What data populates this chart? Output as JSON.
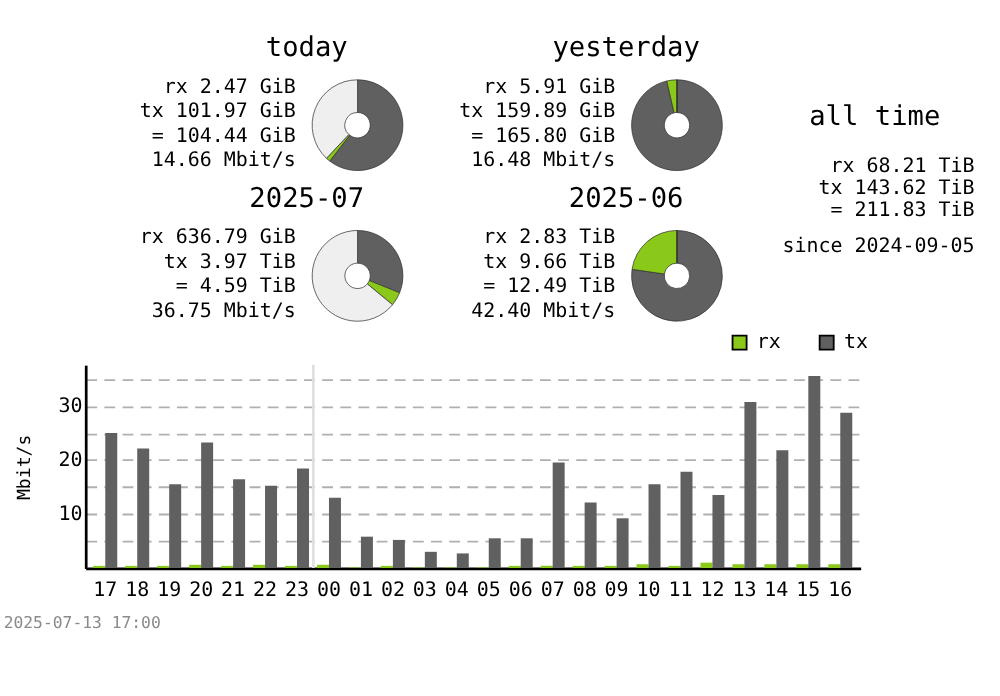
{
  "chart_data": [
    {
      "type": "donut",
      "title": "today",
      "categories": [
        null,
        null,
        null
      ],
      "values": [
        60.5,
        1.5,
        38
      ],
      "colors": [
        "#606060",
        "#8ac819",
        "#efefef"
      ],
      "annotations": [
        "rx 2.47 GiB",
        "tx 101.97 GiB",
        "= 104.44 GiB",
        "14.66 Mbit/s"
      ]
    },
    {
      "type": "donut",
      "title": "yesterday",
      "categories": [
        null,
        null,
        null
      ],
      "values": [
        96.4,
        3.6,
        0
      ],
      "colors": [
        "#606060",
        "#8ac819",
        "#efefef"
      ],
      "annotations": [
        "rx 5.91 GiB",
        "tx 159.89 GiB",
        "= 165.80 GiB",
        "16.48 Mbit/s"
      ]
    },
    {
      "type": "other",
      "title": "all time",
      "annotations": [
        "rx 68.21 TiB",
        "tx 143.62 TiB",
        "= 211.83 TiB",
        "since 2024-09-05"
      ]
    },
    {
      "type": "donut",
      "title": "2025-07",
      "categories": [
        null,
        null,
        null
      ],
      "values": [
        31.1,
        4.9,
        64
      ],
      "colors": [
        "#606060",
        "#8ac819",
        "#efefef"
      ],
      "annotations": [
        "rx 636.79 GiB",
        "tx 3.97 TiB",
        "= 4.59 TiB",
        "36.75 Mbit/s"
      ]
    },
    {
      "type": "donut",
      "title": "2025-06",
      "categories": [
        null,
        null,
        null
      ],
      "values": [
        77.3,
        22.7,
        0
      ],
      "colors": [
        "#606060",
        "#8ac819",
        "#efefef"
      ],
      "annotations": [
        "rx 2.83 TiB",
        "tx 9.66 TiB",
        "= 12.49 TiB",
        "42.40 Mbit/s"
      ]
    },
    {
      "type": "bar",
      "ylabel": "Mbit/s",
      "categories": [
        "17",
        "18",
        "19",
        "20",
        "21",
        "22",
        "23",
        "00",
        "01",
        "02",
        "03",
        "04",
        "05",
        "06",
        "07",
        "08",
        "09",
        "10",
        "11",
        "12",
        "13",
        "14",
        "15",
        "16"
      ],
      "series": [
        {
          "name": "rx",
          "color": "#8ac819",
          "values": [
            0.4,
            0.4,
            0.4,
            0.6,
            0.4,
            0.6,
            0.4,
            0.6,
            0.1,
            0.4,
            0.1,
            0.1,
            0.1,
            0.4,
            0.4,
            0.4,
            0.4,
            0.7,
            0.4,
            1.0,
            0.7,
            0.7,
            0.7,
            0.7
          ]
        },
        {
          "name": "tx",
          "color": "#606060",
          "values": [
            25.0,
            22.1,
            15.5,
            23.2,
            16.4,
            15.2,
            18.4,
            13.0,
            5.8,
            5.2,
            3.0,
            2.7,
            5.5,
            5.5,
            19.5,
            12.1,
            9.2,
            15.5,
            17.8,
            13.5,
            30.7,
            21.8,
            35.5,
            28.7
          ]
        }
      ],
      "ylim": [
        0,
        37.6
      ],
      "yticks": [
        {
          "value": 5,
          "label": null
        },
        10,
        {
          "value": 15,
          "label": null
        },
        20,
        {
          "value": 25,
          "label": null
        },
        30,
        {
          "value": 35,
          "label": null
        }
      ],
      "grid": "y",
      "legend": "top right",
      "ref_lines": [
        {
          "axis": "x",
          "value": "00",
          "color": "#e0e0e0"
        }
      ],
      "annotations": [
        "2025-07-13 17:00"
      ]
    }
  ]
}
